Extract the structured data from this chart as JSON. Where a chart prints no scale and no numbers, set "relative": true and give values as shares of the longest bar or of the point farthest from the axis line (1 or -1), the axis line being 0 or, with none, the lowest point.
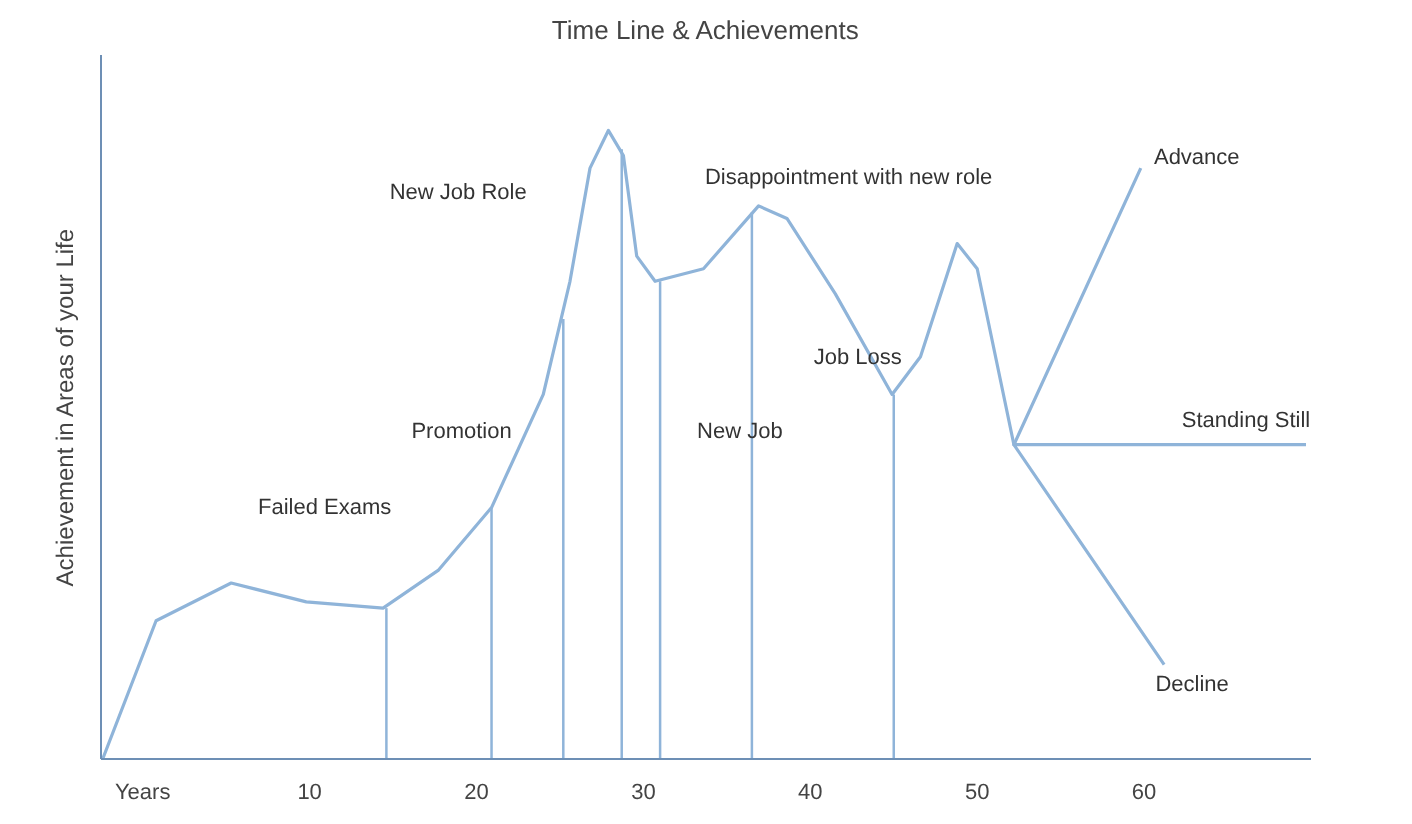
{
  "chart_data": {
    "type": "line",
    "title": "Time Line & Achievements",
    "ylabel": "Achievement in Areas of your Life",
    "relative": true,
    "grid": false,
    "marker": "none",
    "line_style": "solid",
    "xlim": [
      -2.5,
      70
    ],
    "xticks": [
      {
        "value": 0,
        "label": "Years"
      },
      10,
      20,
      30,
      40,
      50,
      60
    ],
    "series": [
      {
        "color": "#8fb4d9",
        "x": [
          -2.4,
          0.8,
          5.3,
          9.8,
          14.4,
          17.7,
          20.9,
          24,
          25.6,
          26.8,
          27.9,
          28.8,
          29.6,
          30.7,
          33.6,
          36.9,
          38.6,
          41.5,
          44.9,
          46.6,
          48.8,
          50,
          52.2,
          61.2
        ],
        "values": [
          0,
          0.22,
          0.28,
          0.25,
          0.24,
          0.3,
          0.4,
          0.58,
          0.76,
          0.94,
          1.0,
          0.96,
          0.8,
          0.76,
          0.78,
          0.88,
          0.86,
          0.74,
          0.58,
          0.64,
          0.82,
          0.78,
          0.5,
          0.15
        ]
      },
      {
        "color": "#8fb4d9",
        "x": [
          59.8,
          52.2,
          69.7
        ],
        "values": [
          0.94,
          0.5,
          0.5
        ]
      },
      {
        "type": "bar",
        "color": "#8fb4d9",
        "x": [
          14.6,
          20.9,
          25.2,
          28.7,
          31.0,
          36.5,
          45.0
        ],
        "values": [
          0.24,
          0.4,
          0.7,
          0.97,
          0.76,
          0.87,
          0.58
        ]
      }
    ],
    "annotations": [
      "Failed Exams",
      {
        "text": "Promotion",
        "x": 20.9,
        "y": 0.4
      },
      "New Job Role",
      {
        "text": "Disappointment with new role",
        "x": 36.9,
        "y": 0.88
      },
      {
        "text": "New Job",
        "x": 36.5,
        "y": 0.52
      },
      {
        "text": "Job Loss",
        "x": 45.0,
        "y": 0.58
      },
      {
        "text": "Advance",
        "x": 59.8,
        "y": 0.94
      },
      {
        "text": "Standing Still",
        "x": 69.7,
        "y": 0.5
      },
      {
        "text": "Decline",
        "x": 61.2,
        "y": 0.15
      }
    ]
  }
}
